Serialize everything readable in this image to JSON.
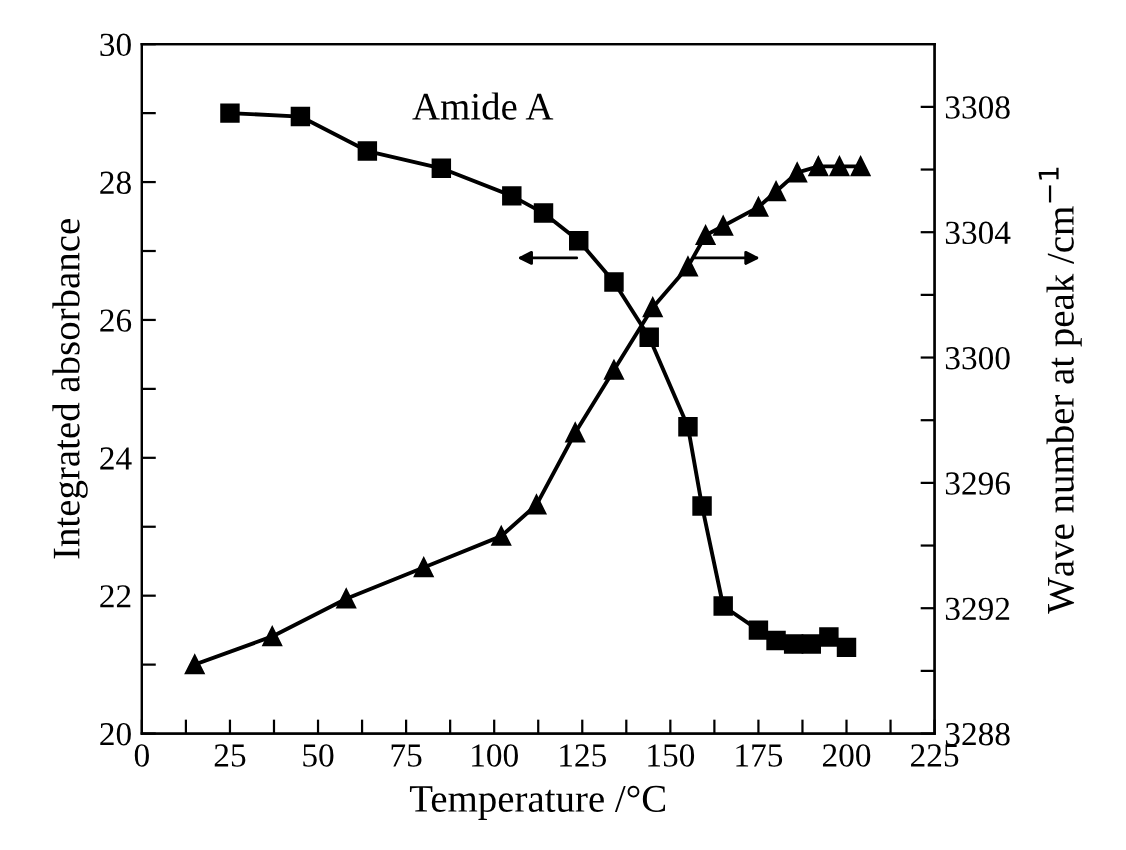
{
  "chart_data": {
    "type": "line",
    "xlabel": "Temperature /°C",
    "ylabel": "Integrated absorbance",
    "y2label": "Wave number at peak /cm$^{−1}$",
    "annotations": [
      "Amide A"
    ],
    "marker": "square",
    "series": [
      {
        "color": "#000000",
        "x": [
          25,
          45,
          64,
          85,
          105,
          114,
          124,
          134,
          144,
          155,
          159,
          165,
          175,
          180,
          185,
          190,
          195,
          200
        ],
        "values": [
          29.0,
          28.95,
          28.45,
          28.2,
          27.8,
          27.55,
          27.15,
          26.55,
          25.75,
          24.45,
          23.3,
          21.85,
          21.5,
          21.35,
          21.3,
          21.3,
          21.4,
          21.25
        ]
      },
      {
        "marker": "triangle",
        "axis": "y2",
        "color": "#000000",
        "x": [
          15,
          37,
          58,
          80,
          102,
          112,
          123,
          134,
          145,
          155,
          160,
          165,
          175,
          180,
          186,
          192,
          198,
          204
        ],
        "values": [
          3290.2,
          3291.1,
          3292.3,
          3293.3,
          3294.3,
          3295.3,
          3297.6,
          3299.6,
          3301.6,
          3302.9,
          3303.9,
          3304.2,
          3304.8,
          3305.3,
          3305.9,
          3306.1,
          3306.1,
          3306.1
        ]
      }
    ],
    "xlim": [
      0,
      225
    ],
    "xticks": [
      0,
      {
        "value": 12.5,
        "label": null
      },
      25,
      {
        "value": 37.5,
        "label": null
      },
      50,
      {
        "value": 62.5,
        "label": null
      },
      75,
      {
        "value": 87.5,
        "label": null
      },
      100,
      {
        "value": 112.5,
        "label": null
      },
      125,
      {
        "value": 137.5,
        "label": null
      },
      150,
      {
        "value": 162.5,
        "label": null
      },
      175,
      {
        "value": 187.5,
        "label": null
      },
      200,
      {
        "value": 212.5,
        "label": null
      },
      225
    ],
    "ylim": [
      20,
      30
    ],
    "yticks": [
      20,
      {
        "value": 21,
        "label": null
      },
      22,
      {
        "value": 23,
        "label": null
      },
      24,
      {
        "value": 25,
        "label": null
      },
      26,
      {
        "value": 27,
        "label": null
      },
      28,
      {
        "value": 29,
        "label": null
      },
      30
    ],
    "y2lim": [
      3288,
      3310
    ],
    "y2ticks": [
      3288,
      {
        "value": 3290,
        "label": null
      },
      3292,
      {
        "value": 3294,
        "label": null
      },
      3296,
      {
        "value": 3298,
        "label": null
      },
      3300,
      {
        "value": 3302,
        "label": null
      },
      3304,
      {
        "value": 3306,
        "label": null
      },
      3308
    ],
    "grid": false,
    "legend": false
  }
}
